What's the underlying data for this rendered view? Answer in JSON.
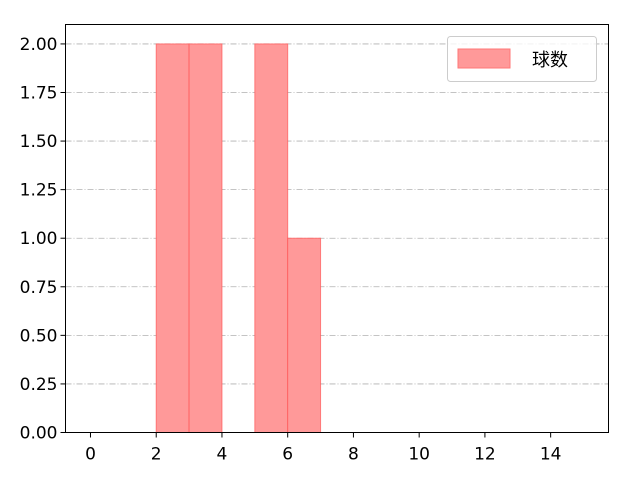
{
  "chart_data": {
    "type": "bar",
    "subtype": "histogram",
    "bin_edges": [
      0,
      1,
      2,
      3,
      4,
      5,
      6,
      7,
      8,
      9,
      10,
      11,
      12,
      13,
      14,
      15
    ],
    "series": [
      {
        "name": "球数",
        "values": [
          0,
          0,
          2,
          2,
          0,
          2,
          1,
          0,
          0,
          0,
          0,
          0,
          0,
          0,
          0
        ],
        "color": "#ff9999",
        "edge_color": "#ff5555"
      }
    ],
    "xlim": [
      -0.76,
      15.76
    ],
    "ylim": [
      0,
      2.1
    ],
    "x_ticks": [
      "0",
      "2",
      "4",
      "6",
      "8",
      "10",
      "12",
      "14"
    ],
    "y_ticks": [
      "0.00",
      "0.25",
      "0.50",
      "0.75",
      "1.00",
      "1.25",
      "1.50",
      "1.75",
      "2.00"
    ],
    "grid": {
      "axis": "y",
      "style": "dash-dot",
      "color": "#b0b0b0"
    },
    "legend": {
      "position": "top-right",
      "entries": [
        "球数"
      ]
    },
    "title": "",
    "xlabel": "",
    "ylabel": ""
  }
}
